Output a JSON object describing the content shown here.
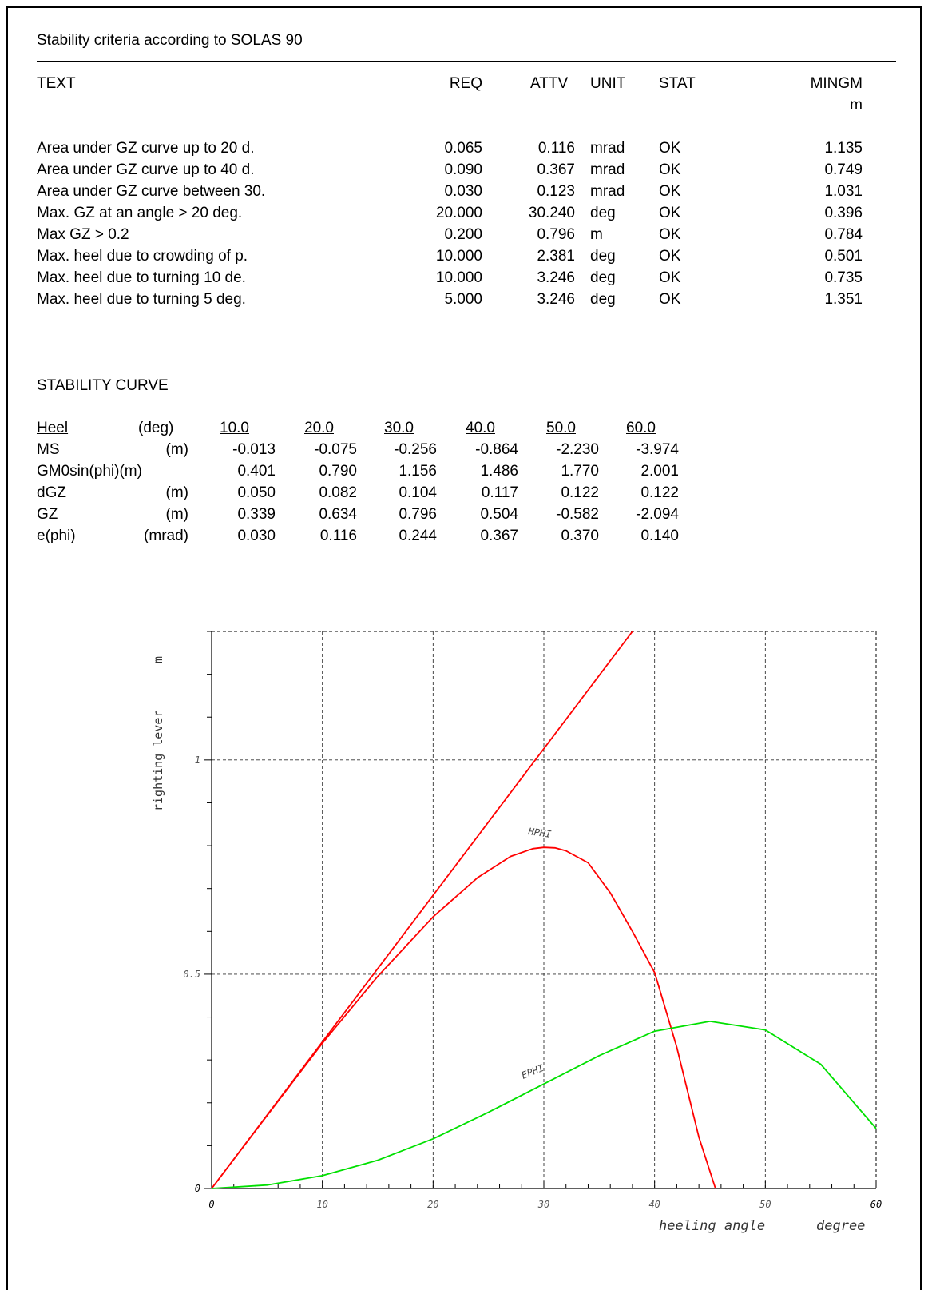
{
  "criteria": {
    "title": "Stability criteria according to SOLAS 90",
    "headers": {
      "text": "TEXT",
      "req": "REQ",
      "attv": "ATTV",
      "unit": "UNIT",
      "stat": "STAT",
      "mingm": "MINGM",
      "mingm_unit": "m"
    },
    "rows": [
      {
        "text": "Area under GZ curve up to 20 d.",
        "req": "0.065",
        "attv": "0.116",
        "unit": "mrad",
        "stat": "OK",
        "mingm": "1.135"
      },
      {
        "text": "Area under GZ curve up to 40 d.",
        "req": "0.090",
        "attv": "0.367",
        "unit": "mrad",
        "stat": "OK",
        "mingm": "0.749"
      },
      {
        "text": "Area under GZ curve between 30.",
        "req": "0.030",
        "attv": "0.123",
        "unit": "mrad",
        "stat": "OK",
        "mingm": "1.031"
      },
      {
        "text": "Max. GZ at an angle > 20 deg.",
        "req": "20.000",
        "attv": "30.240",
        "unit": "deg",
        "stat": "OK",
        "mingm": "0.396"
      },
      {
        "text": "Max GZ > 0.2",
        "req": "0.200",
        "attv": "0.796",
        "unit": "m",
        "stat": "OK",
        "mingm": "0.784"
      },
      {
        "text": "Max. heel due to crowding of p.",
        "req": "10.000",
        "attv": "2.381",
        "unit": "deg",
        "stat": "OK",
        "mingm": "0.501"
      },
      {
        "text": "Max. heel due to turning 10 de.",
        "req": "10.000",
        "attv": "3.246",
        "unit": "deg",
        "stat": "OK",
        "mingm": "0.735"
      },
      {
        "text": "Max. heel due to turning 5 deg.",
        "req": "5.000",
        "attv": "3.246",
        "unit": "deg",
        "stat": "OK",
        "mingm": "1.351"
      }
    ]
  },
  "curve_table": {
    "title": "STABILITY CURVE",
    "heel_label": "Heel",
    "heel_unit": "(deg)",
    "angles": [
      "10.0",
      "20.0",
      "30.0",
      "40.0",
      "50.0",
      "60.0"
    ],
    "rows": [
      {
        "label": "MS",
        "unit": "(m)",
        "values": [
          "-0.013",
          "-0.075",
          "-0.256",
          "-0.864",
          "-2.230",
          "-3.974"
        ]
      },
      {
        "label": "GM0sin(phi)(m)",
        "unit": "",
        "values": [
          "0.401",
          "0.790",
          "1.156",
          "1.486",
          "1.770",
          "2.001"
        ]
      },
      {
        "label": "dGZ",
        "unit": "(m)",
        "values": [
          "0.050",
          "0.082",
          "0.104",
          "0.117",
          "0.122",
          "0.122"
        ]
      },
      {
        "label": "GZ",
        "unit": "(m)",
        "values": [
          "0.339",
          "0.634",
          "0.796",
          "0.504",
          "-0.582",
          "-2.094"
        ]
      },
      {
        "label": "e(phi)",
        "unit": "(mrad)",
        "values": [
          "0.030",
          "0.116",
          "0.244",
          "0.367",
          "0.370",
          "0.140"
        ]
      }
    ]
  },
  "chart_data": {
    "type": "line",
    "xlabel": "heeling angle",
    "xunit": "degree",
    "ylabel": "righting lever",
    "yunit": "m",
    "xlim": [
      0,
      60
    ],
    "ylim": [
      0,
      1.3
    ],
    "x_ticks": [
      "0",
      "10",
      "20",
      "30",
      "40",
      "50",
      "60"
    ],
    "y_ticks": [
      "0",
      "0.5",
      "1"
    ],
    "grid": true,
    "colors": {
      "hphi": "#ff0000",
      "ephi": "#00e000",
      "tangent": "#ff0000"
    },
    "series": [
      {
        "name": "HPHI",
        "x": [
          0,
          5,
          10,
          15,
          20,
          24,
          27,
          29,
          30,
          31,
          32,
          34,
          36,
          38,
          40,
          42,
          44,
          45.5
        ],
        "y": [
          0,
          0.17,
          0.339,
          0.495,
          0.634,
          0.725,
          0.775,
          0.793,
          0.796,
          0.795,
          0.788,
          0.76,
          0.69,
          0.6,
          0.504,
          0.33,
          0.12,
          0
        ]
      },
      {
        "name": "EPHI",
        "x": [
          0,
          5,
          10,
          15,
          20,
          25,
          30,
          35,
          40,
          45,
          50,
          55,
          60
        ],
        "y": [
          0,
          0.008,
          0.03,
          0.066,
          0.116,
          0.178,
          0.244,
          0.31,
          0.367,
          0.39,
          0.37,
          0.29,
          0.14
        ]
      },
      {
        "x": [
          0,
          38
        ],
        "y": [
          0,
          1.3
        ]
      }
    ]
  }
}
